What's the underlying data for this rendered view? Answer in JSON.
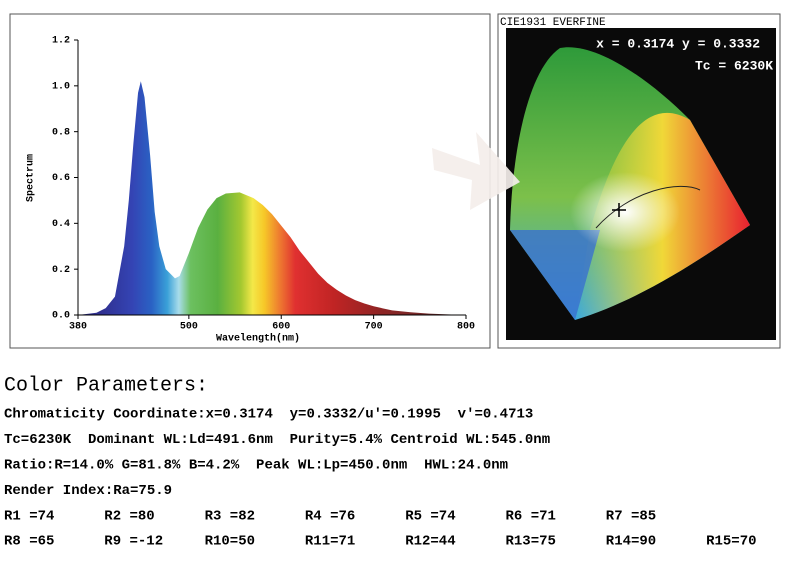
{
  "chart_data": {
    "type": "area",
    "xlabel": "Wavelength(nm)",
    "ylabel": "Spectrum",
    "x": [
      380,
      400,
      410,
      420,
      430,
      435,
      440,
      445,
      448,
      452,
      458,
      463,
      468,
      475,
      480,
      485,
      490,
      500,
      510,
      520,
      530,
      540,
      555,
      570,
      580,
      590,
      600,
      610,
      620,
      630,
      640,
      650,
      660,
      670,
      680,
      690,
      700,
      720,
      740,
      760,
      780,
      800
    ],
    "values": [
      0,
      0.01,
      0.03,
      0.08,
      0.3,
      0.5,
      0.75,
      0.97,
      1.02,
      0.95,
      0.7,
      0.45,
      0.3,
      0.2,
      0.18,
      0.16,
      0.17,
      0.27,
      0.38,
      0.46,
      0.51,
      0.53,
      0.535,
      0.51,
      0.48,
      0.44,
      0.39,
      0.34,
      0.28,
      0.23,
      0.18,
      0.14,
      0.11,
      0.085,
      0.065,
      0.05,
      0.038,
      0.02,
      0.012,
      0.006,
      0.003,
      0
    ],
    "xlim": [
      380,
      800
    ],
    "xticks": [
      380,
      500,
      600,
      700,
      800
    ],
    "ylim": [
      0,
      1.2
    ],
    "yticks": [
      {
        "value": 0,
        "label": "0.0"
      },
      0.2,
      0.4,
      0.6,
      0.8,
      {
        "value": 1,
        "label": "1.0"
      },
      1.2
    ],
    "grid": false
  },
  "cie": {
    "title": "CIE1931 EVERFINE",
    "coords": "x = 0.3174 y = 0.3332",
    "tc": "Tc = 6230K"
  },
  "parameters": {
    "title": "Color Parameters:",
    "lines": [
      "Chromaticity Coordinate:x=0.3174  y=0.3332/u'=0.1995  v'=0.4713",
      "Tc=6230K  Dominant WL:Ld=491.6nm  Purity=5.4% Centroid WL:545.0nm",
      "Ratio:R=14.0% G=81.8% B=4.2%  Peak WL:Lp=450.0nm  HWL:24.0nm",
      "Render Index:Ra=75.9"
    ],
    "render_rows": [
      [
        "R1 =74",
        "R2 =80",
        "R3 =82",
        "R4 =76",
        "R5 =74",
        "R6 =71",
        "R7 =85"
      ],
      [
        "R8 =65",
        "R9 =-12",
        "R10=50",
        "R11=71",
        "R12=44",
        "R13=75",
        "R14=90",
        "R15=70"
      ]
    ]
  }
}
